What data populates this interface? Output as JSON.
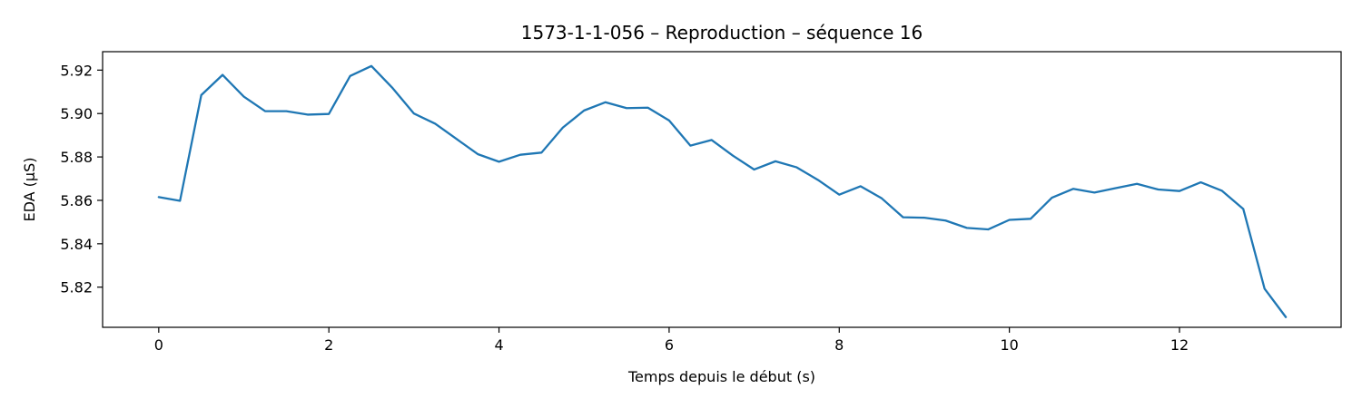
{
  "chart_data": {
    "type": "line",
    "title": "1573-1-1-056 – Reproduction – séquence 16",
    "xlabel": "Temps depuis le début (s)",
    "ylabel": "EDA (µS)",
    "xlim": [
      -0.66,
      13.9
    ],
    "ylim": [
      5.8015,
      5.9285
    ],
    "xticks": [
      0,
      2,
      4,
      6,
      8,
      10,
      12
    ],
    "xtick_labels": [
      "0",
      "2",
      "4",
      "6",
      "8",
      "10",
      "12"
    ],
    "yticks": [
      5.82,
      5.84,
      5.86,
      5.88,
      5.9,
      5.92
    ],
    "ytick_labels": [
      "5.82",
      "5.84",
      "5.86",
      "5.88",
      "5.90",
      "5.92"
    ],
    "grid": false,
    "series": [
      {
        "color": "#1f77b4",
        "x": [
          0,
          0.25,
          0.5,
          0.75,
          1.0,
          1.25,
          1.5,
          1.75,
          2.0,
          2.25,
          2.5,
          2.75,
          3.0,
          3.25,
          3.5,
          3.75,
          4.0,
          4.25,
          4.5,
          4.75,
          5.0,
          5.25,
          5.5,
          5.75,
          6.0,
          6.25,
          6.5,
          6.75,
          7.0,
          7.25,
          7.5,
          7.75,
          8.0,
          8.25,
          8.5,
          8.75,
          9.0,
          9.25,
          9.5,
          9.75,
          10.0,
          10.25,
          10.5,
          10.75,
          11.0,
          11.25,
          11.5,
          11.75,
          12.0,
          12.25,
          12.5,
          12.75,
          13.0,
          13.25
        ],
        "y": [
          5.8615,
          5.8598,
          5.9085,
          5.9178,
          5.9078,
          5.9011,
          5.9011,
          5.8995,
          5.8998,
          5.9173,
          5.9219,
          5.9117,
          5.9,
          5.8953,
          5.8883,
          5.8813,
          5.8778,
          5.881,
          5.882,
          5.8935,
          5.9014,
          5.9052,
          5.9025,
          5.9027,
          5.8968,
          5.8852,
          5.8878,
          5.8806,
          5.8742,
          5.878,
          5.8752,
          5.8694,
          5.8626,
          5.8665,
          5.8609,
          5.8522,
          5.852,
          5.8507,
          5.8473,
          5.8466,
          5.851,
          5.8515,
          5.8612,
          5.8653,
          5.8636,
          5.8656,
          5.8676,
          5.865,
          5.8643,
          5.8683,
          5.8644,
          5.856,
          5.8193,
          5.8062
        ]
      }
    ]
  }
}
